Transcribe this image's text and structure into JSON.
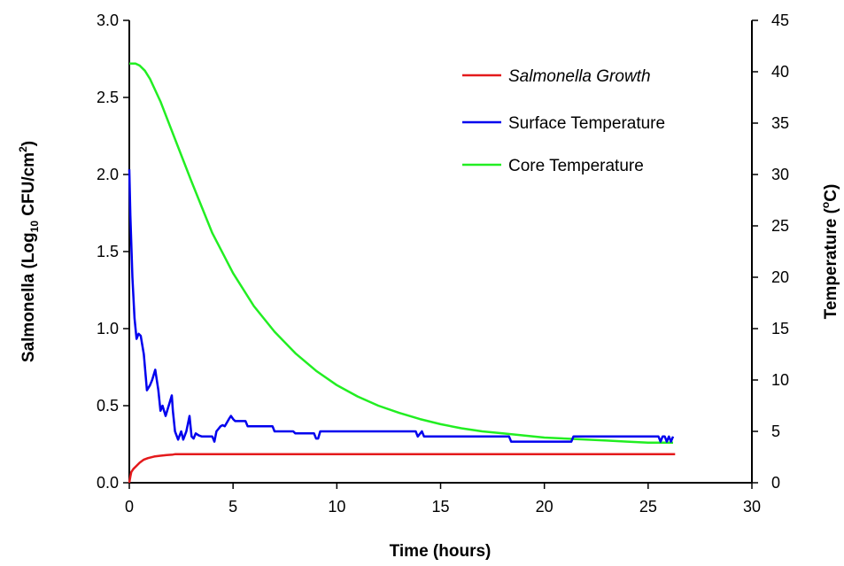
{
  "chart_data": {
    "type": "line",
    "xlabel": "Time (hours)",
    "ylabel": {
      "pre": "Salmonella (Log",
      "sub": "10",
      "mid": " CFU/cm",
      "sup": "2",
      "post": ")"
    },
    "y2label": {
      "pre": "Temperature (",
      "sup": "o",
      "post": "C)"
    },
    "xlim": [
      0,
      30
    ],
    "ylim": [
      0,
      3.0
    ],
    "y2lim": [
      0,
      45
    ],
    "x_ticks": [
      "0",
      "5",
      "10",
      "15",
      "20",
      "25",
      "30"
    ],
    "y_ticks": [
      "0.0",
      "0.5",
      "1.0",
      "1.5",
      "2.0",
      "2.5",
      "3.0"
    ],
    "y2_ticks": [
      "0",
      "5",
      "10",
      "15",
      "20",
      "25",
      "30",
      "35",
      "40",
      "45"
    ],
    "grid": false,
    "legend_position": "top-right",
    "series": [
      {
        "name": "Salmonella Growth",
        "axis": "left",
        "color": "#e41a1c",
        "italic": true,
        "x": [
          0,
          0.05,
          0.1,
          0.2,
          0.35,
          0.5,
          0.7,
          0.9,
          1.2,
          1.5,
          1.8,
          2.1,
          2.2,
          26.3
        ],
        "y": [
          0.0,
          0.04,
          0.07,
          0.09,
          0.11,
          0.13,
          0.15,
          0.16,
          0.17,
          0.175,
          0.18,
          0.183,
          0.185,
          0.185
        ]
      },
      {
        "name": "Surface Temperature",
        "axis": "right",
        "color": "#0000ee",
        "italic": false,
        "x": [
          0,
          0.05,
          0.15,
          0.25,
          0.35,
          0.45,
          0.55,
          0.7,
          0.85,
          1.0,
          1.1,
          1.25,
          1.4,
          1.5,
          1.6,
          1.75,
          1.9,
          2.05,
          2.1,
          2.2,
          2.35,
          2.5,
          2.6,
          2.75,
          2.9,
          3.0,
          3.1,
          3.2,
          3.35,
          3.5,
          3.6,
          4.0,
          4.1,
          4.2,
          4.4,
          4.5,
          4.6,
          4.8,
          4.9,
          5.0,
          5.1,
          5.6,
          5.7,
          6.9,
          7.0,
          7.9,
          8.0,
          8.9,
          9.0,
          9.1,
          9.2,
          13.8,
          13.9,
          14.1,
          14.2,
          14.3,
          18.3,
          18.4,
          21.3,
          21.4,
          25.5,
          25.6,
          25.7,
          25.8,
          25.9,
          26.0,
          26.1,
          26.2
        ],
        "y": [
          30.5,
          26,
          20,
          16,
          14,
          14.5,
          14.3,
          12.5,
          9,
          9.5,
          10,
          11,
          9,
          7,
          7.5,
          6.5,
          7.5,
          8.5,
          7,
          5,
          4.2,
          5,
          4.2,
          5,
          6.5,
          4.5,
          4.3,
          4.8,
          4.6,
          4.5,
          4.5,
          4.5,
          4.0,
          5.0,
          5.5,
          5.6,
          5.5,
          6.2,
          6.5,
          6.2,
          6.0,
          6.0,
          5.5,
          5.5,
          5.0,
          5.0,
          4.8,
          4.8,
          4.3,
          4.3,
          5.0,
          5.0,
          4.5,
          5.0,
          4.5,
          4.5,
          4.5,
          4.0,
          4.0,
          4.5,
          4.5,
          4.0,
          4.5,
          4.5,
          4.0,
          4.5,
          4.0,
          4.5
        ]
      },
      {
        "name": "Core Temperature",
        "axis": "right",
        "color": "#22ee22",
        "italic": false,
        "x": [
          0,
          0.3,
          0.5,
          0.75,
          1,
          1.5,
          2,
          2.5,
          3,
          3.5,
          4,
          5,
          6,
          7,
          8,
          9,
          10,
          11,
          12,
          13,
          14,
          15,
          16,
          17,
          18,
          19,
          20,
          21,
          22,
          23,
          24,
          25,
          26.2
        ],
        "y": [
          40.8,
          40.8,
          40.6,
          40.1,
          39.3,
          37.1,
          34.5,
          31.9,
          29.3,
          26.8,
          24.3,
          20.4,
          17.2,
          14.7,
          12.6,
          10.9,
          9.5,
          8.4,
          7.5,
          6.8,
          6.2,
          5.7,
          5.3,
          5.0,
          4.8,
          4.6,
          4.4,
          4.3,
          4.2,
          4.1,
          4.0,
          3.9,
          3.9
        ]
      }
    ]
  }
}
